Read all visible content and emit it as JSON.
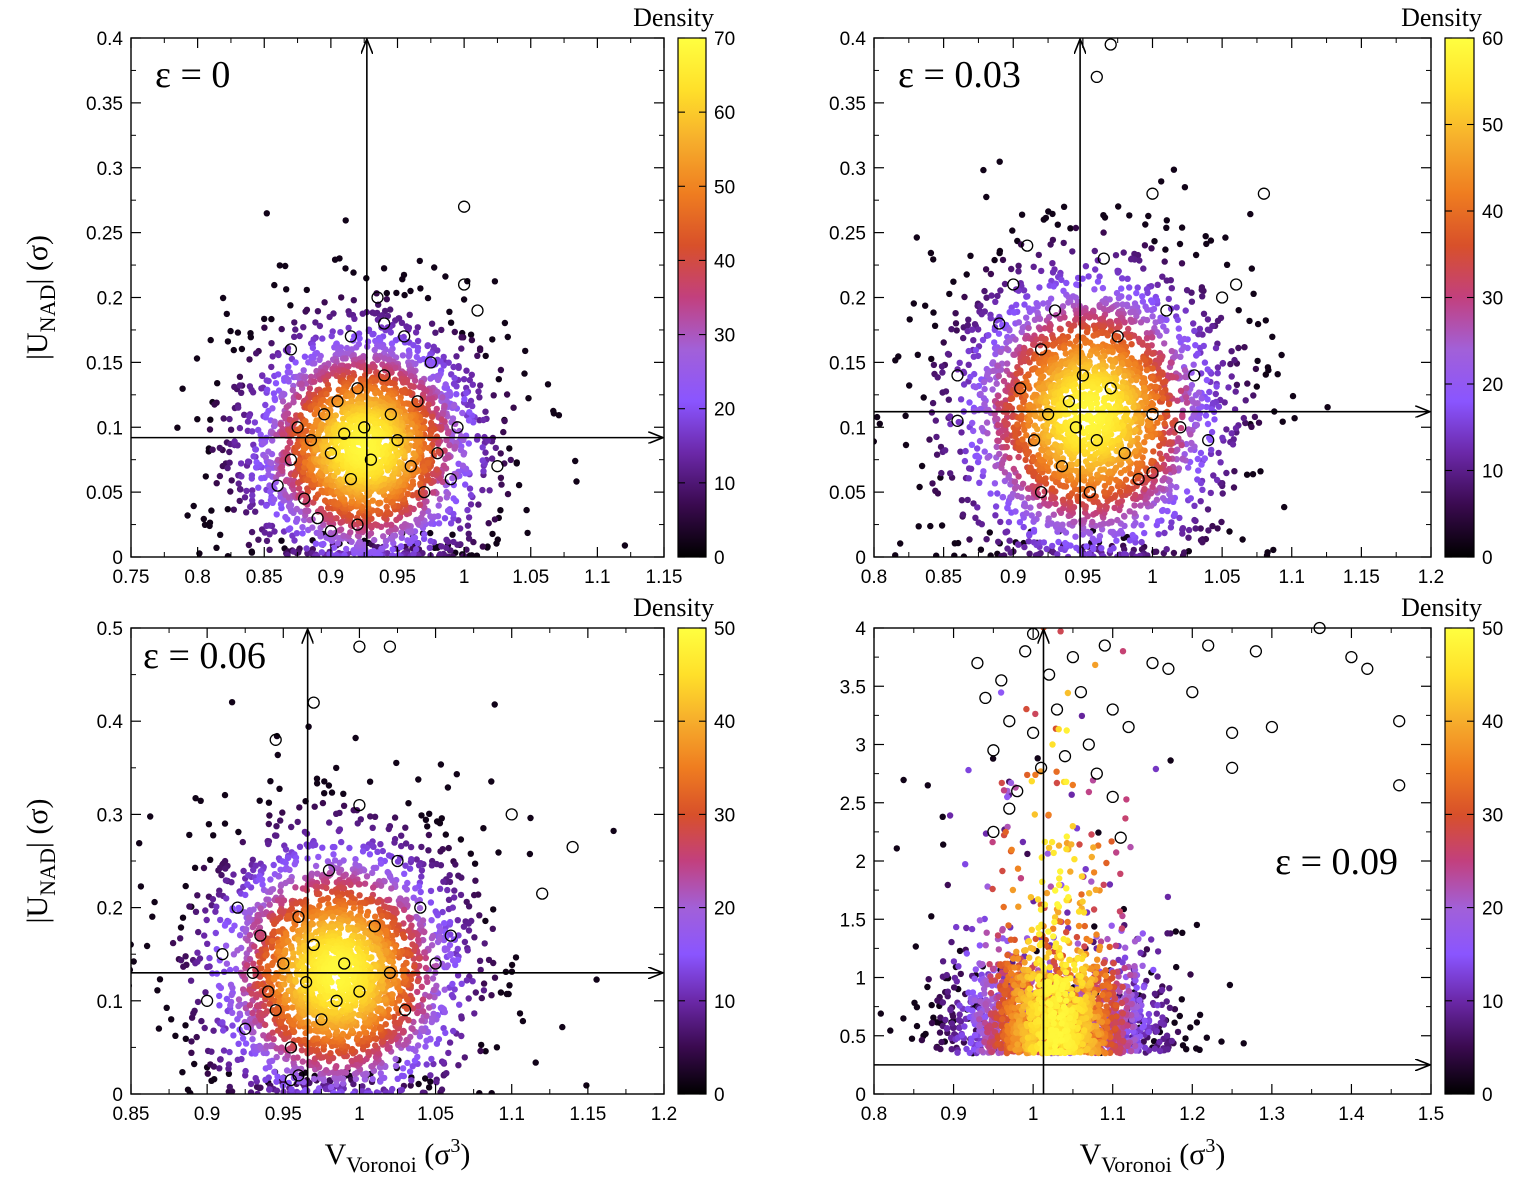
{
  "colormap": [
    "#000000",
    "#3a0a4f",
    "#6b28a8",
    "#8a55ff",
    "#a260d8",
    "#c2407e",
    "#d8502a",
    "#ef7d20",
    "#f6ad2c",
    "#ffe02a",
    "#ffff40"
  ],
  "chart_data": [
    {
      "type": "scatter",
      "panel": "top-left",
      "annotation": "ε = 0",
      "ylabel_main": "|U",
      "ylabel_sub": "NAD",
      "ylabel_tail": "| (σ)",
      "xlabel_main": "",
      "xlabel_sub": "",
      "xlabel_tail": "",
      "xlim": [
        0.75,
        1.15
      ],
      "ylim": [
        0,
        0.4
      ],
      "xticks": [
        "0.75",
        "0.8",
        "0.85",
        "0.9",
        "0.95",
        "1",
        "1.05",
        "1.1",
        "1.15"
      ],
      "yticks": [
        "0",
        "0.05",
        "0.1",
        "0.15",
        "0.2",
        "0.25",
        "0.3",
        "0.35",
        "0.4"
      ],
      "colorbar_label": "Density",
      "colorbar_range": [
        0,
        70
      ],
      "colorbar_ticks": [
        "0",
        "10",
        "20",
        "30",
        "40",
        "50",
        "60",
        "70"
      ],
      "cloud": {
        "cx": 0.925,
        "cy": 0.085,
        "sx": 0.042,
        "sy": 0.048,
        "n": 2600,
        "seed": 11
      },
      "arrow_v": 0.927,
      "arrow_h": 0.092,
      "open_circles": [
        [
          0.87,
          0.075
        ],
        [
          0.875,
          0.1
        ],
        [
          0.885,
          0.09
        ],
        [
          0.88,
          0.045
        ],
        [
          0.89,
          0.03
        ],
        [
          0.895,
          0.11
        ],
        [
          0.9,
          0.08
        ],
        [
          0.905,
          0.12
        ],
        [
          0.91,
          0.095
        ],
        [
          0.915,
          0.06
        ],
        [
          0.92,
          0.13
        ],
        [
          0.925,
          0.1
        ],
        [
          0.93,
          0.075
        ],
        [
          0.935,
          0.2
        ],
        [
          0.94,
          0.14
        ],
        [
          0.945,
          0.11
        ],
        [
          0.95,
          0.09
        ],
        [
          0.955,
          0.17
        ],
        [
          0.96,
          0.07
        ],
        [
          0.965,
          0.12
        ],
        [
          0.97,
          0.05
        ],
        [
          0.975,
          0.15
        ],
        [
          0.98,
          0.08
        ],
        [
          0.99,
          0.06
        ],
        [
          0.995,
          0.1
        ],
        [
          1.0,
          0.27
        ],
        [
          1.0,
          0.21
        ],
        [
          1.01,
          0.19
        ],
        [
          1.025,
          0.07
        ],
        [
          0.9,
          0.02
        ],
        [
          0.92,
          0.025
        ],
        [
          0.86,
          0.055
        ],
        [
          0.87,
          0.16
        ],
        [
          0.915,
          0.17
        ],
        [
          0.94,
          0.18
        ]
      ]
    },
    {
      "type": "scatter",
      "panel": "top-right",
      "annotation": "ε = 0.03",
      "ylabel_main": "",
      "ylabel_sub": "",
      "ylabel_tail": "",
      "xlabel_main": "",
      "xlabel_sub": "",
      "xlabel_tail": "",
      "xlim": [
        0.8,
        1.2
      ],
      "ylim": [
        0,
        0.4
      ],
      "xticks": [
        "0.8",
        "0.85",
        "0.9",
        "0.95",
        "1",
        "1.05",
        "1.1",
        "1.15",
        "1.2"
      ],
      "yticks": [
        "0",
        "0.05",
        "0.1",
        "0.15",
        "0.2",
        "0.25",
        "0.3",
        "0.35",
        "0.4"
      ],
      "colorbar_label": "Density",
      "colorbar_range": [
        0,
        60
      ],
      "colorbar_ticks": [
        "0",
        "10",
        "20",
        "30",
        "40",
        "50",
        "60"
      ],
      "cloud": {
        "cx": 0.955,
        "cy": 0.11,
        "sx": 0.045,
        "sy": 0.058,
        "n": 2600,
        "seed": 23
      },
      "arrow_v": 0.948,
      "arrow_h": 0.112,
      "open_circles": [
        [
          0.86,
          0.14
        ],
        [
          0.86,
          0.105
        ],
        [
          0.89,
          0.18
        ],
        [
          0.9,
          0.21
        ],
        [
          0.905,
          0.13
        ],
        [
          0.91,
          0.24
        ],
        [
          0.915,
          0.09
        ],
        [
          0.92,
          0.16
        ],
        [
          0.925,
          0.11
        ],
        [
          0.93,
          0.19
        ],
        [
          0.935,
          0.07
        ],
        [
          0.94,
          0.12
        ],
        [
          0.945,
          0.1
        ],
        [
          0.95,
          0.14
        ],
        [
          0.955,
          0.05
        ],
        [
          0.96,
          0.09
        ],
        [
          0.965,
          0.23
        ],
        [
          0.97,
          0.13
        ],
        [
          0.975,
          0.17
        ],
        [
          0.98,
          0.08
        ],
        [
          0.99,
          0.06
        ],
        [
          1.0,
          0.11
        ],
        [
          1.0,
          0.28
        ],
        [
          1.01,
          0.19
        ],
        [
          1.02,
          0.1
        ],
        [
          1.03,
          0.14
        ],
        [
          1.04,
          0.09
        ],
        [
          1.05,
          0.2
        ],
        [
          1.06,
          0.21
        ],
        [
          1.08,
          0.28
        ],
        [
          0.96,
          0.37
        ],
        [
          0.97,
          0.395
        ],
        [
          0.92,
          0.05
        ],
        [
          1.0,
          0.065
        ]
      ]
    },
    {
      "type": "scatter",
      "panel": "bottom-left",
      "annotation": "ε = 0.06",
      "ylabel_main": "|U",
      "ylabel_sub": "NAD",
      "ylabel_tail": "| (σ)",
      "xlabel_main": "V",
      "xlabel_sub": "Voronoi",
      "xlabel_tail": " (σ",
      "xlabel_sup": "3",
      "xlabel_close": ")",
      "xlim": [
        0.85,
        1.2
      ],
      "ylim": [
        0,
        0.5
      ],
      "xticks": [
        "0.85",
        "0.9",
        "0.95",
        "1",
        "1.05",
        "1.1",
        "1.15",
        "1.2"
      ],
      "yticks": [
        "0",
        "0.1",
        "0.2",
        "0.3",
        "0.4",
        "0.5"
      ],
      "colorbar_label": "Density",
      "colorbar_range": [
        0,
        50
      ],
      "colorbar_ticks": [
        "0",
        "10",
        "20",
        "30",
        "40",
        "50"
      ],
      "cloud": {
        "cx": 0.985,
        "cy": 0.13,
        "sx": 0.04,
        "sy": 0.075,
        "n": 2600,
        "seed": 37
      },
      "arrow_v": 0.966,
      "arrow_h": 0.13,
      "open_circles": [
        [
          0.9,
          0.1
        ],
        [
          0.91,
          0.15
        ],
        [
          0.92,
          0.2
        ],
        [
          0.925,
          0.07
        ],
        [
          0.93,
          0.13
        ],
        [
          0.935,
          0.17
        ],
        [
          0.94,
          0.11
        ],
        [
          0.945,
          0.09
        ],
        [
          0.95,
          0.14
        ],
        [
          0.955,
          0.05
        ],
        [
          0.96,
          0.19
        ],
        [
          0.965,
          0.12
        ],
        [
          0.97,
          0.16
        ],
        [
          0.975,
          0.08
        ],
        [
          0.98,
          0.24
        ],
        [
          0.985,
          0.1
        ],
        [
          0.99,
          0.14
        ],
        [
          1.0,
          0.11
        ],
        [
          1.0,
          0.31
        ],
        [
          1.01,
          0.18
        ],
        [
          1.02,
          0.13
        ],
        [
          1.025,
          0.25
        ],
        [
          1.03,
          0.09
        ],
        [
          1.04,
          0.2
        ],
        [
          1.05,
          0.14
        ],
        [
          1.06,
          0.17
        ],
        [
          0.945,
          0.38
        ],
        [
          0.97,
          0.42
        ],
        [
          1.0,
          0.48
        ],
        [
          1.02,
          0.48
        ],
        [
          1.1,
          0.3
        ],
        [
          1.12,
          0.215
        ],
        [
          1.14,
          0.265
        ],
        [
          0.96,
          0.02
        ],
        [
          0.955,
          0.015
        ]
      ]
    },
    {
      "type": "scatter",
      "panel": "bottom-right",
      "annotation": "ε = 0.09",
      "ylabel_main": "",
      "ylabel_sub": "",
      "ylabel_tail": "",
      "xlabel_main": "V",
      "xlabel_sub": "Voronoi",
      "xlabel_tail": " (σ",
      "xlabel_sup": "3",
      "xlabel_close": ")",
      "xlim": [
        0.8,
        1.5
      ],
      "ylim": [
        0,
        4
      ],
      "xticks": [
        "0.8",
        "0.9",
        "1",
        "1.1",
        "1.2",
        "1.3",
        "1.4",
        "1.5"
      ],
      "yticks": [
        "0",
        "0.5",
        "1",
        "1.5",
        "2",
        "2.5",
        "3",
        "3.5",
        "4"
      ],
      "colorbar_label": "Density",
      "colorbar_range": [
        0,
        50
      ],
      "colorbar_ticks": [
        "0",
        "10",
        "20",
        "30",
        "40",
        "50"
      ],
      "cloud": {
        "cx": 1.03,
        "cy": 0.35,
        "sx": 0.06,
        "sy": 0.45,
        "n": 2600,
        "seed": 53
      },
      "arrow_v": 1.013,
      "arrow_h": 0.25,
      "open_circles": [
        [
          0.93,
          3.7
        ],
        [
          0.94,
          3.4
        ],
        [
          0.95,
          2.95
        ],
        [
          0.96,
          3.55
        ],
        [
          0.97,
          3.2
        ],
        [
          0.98,
          2.6
        ],
        [
          0.99,
          3.8
        ],
        [
          1.0,
          3.95
        ],
        [
          1.0,
          3.1
        ],
        [
          1.01,
          2.8
        ],
        [
          1.02,
          3.6
        ],
        [
          1.03,
          3.3
        ],
        [
          1.04,
          2.9
        ],
        [
          1.05,
          3.75
        ],
        [
          1.06,
          3.45
        ],
        [
          1.07,
          3.0
        ],
        [
          1.08,
          2.75
        ],
        [
          1.09,
          3.85
        ],
        [
          1.1,
          3.3
        ],
        [
          1.12,
          3.15
        ],
        [
          1.15,
          3.7
        ],
        [
          1.17,
          3.65
        ],
        [
          1.2,
          3.45
        ],
        [
          1.22,
          3.85
        ],
        [
          1.25,
          3.1
        ],
        [
          1.25,
          2.8
        ],
        [
          1.28,
          3.8
        ],
        [
          1.3,
          3.15
        ],
        [
          1.36,
          4.0
        ],
        [
          1.4,
          3.75
        ],
        [
          1.42,
          3.65
        ],
        [
          1.46,
          3.2
        ],
        [
          1.46,
          2.65
        ],
        [
          0.95,
          2.25
        ],
        [
          0.97,
          2.45
        ],
        [
          1.11,
          2.2
        ],
        [
          1.1,
          2.55
        ]
      ]
    }
  ]
}
